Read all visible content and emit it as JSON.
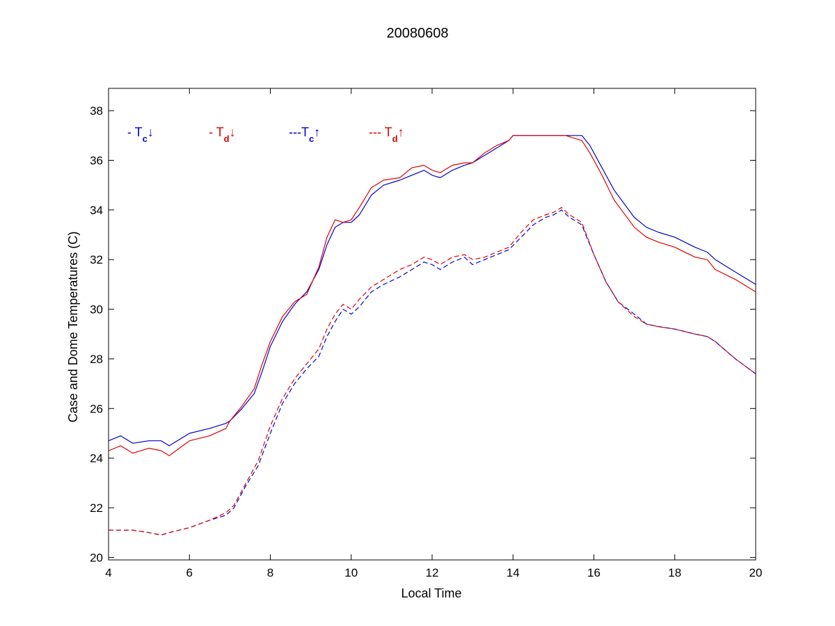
{
  "chart_data": {
    "type": "line",
    "title": "20080608",
    "xlabel": "Local Time",
    "ylabel": "Case and Dome Temperatures (C)",
    "xlim": [
      4,
      20
    ],
    "ylim": [
      19.9,
      38.9
    ],
    "xticks": [
      "4",
      "6",
      "8",
      "10",
      "12",
      "14",
      "16",
      "18",
      "20"
    ],
    "yticks": [
      "20",
      "22",
      "24",
      "26",
      "28",
      "30",
      "32",
      "34",
      "36",
      "38"
    ],
    "grid": false,
    "legend_placement": "top-left",
    "legend": [
      {
        "prefix": "- T",
        "sub": "c",
        "arrow": "↓",
        "color": "#0000cc"
      },
      {
        "prefix": "- T",
        "sub": "d",
        "arrow": "↓",
        "color": "#dd0000"
      },
      {
        "prefix": "---T",
        "sub": "c",
        "arrow": "↑",
        "color": "#0000cc"
      },
      {
        "prefix": "--- T",
        "sub": "d",
        "arrow": "↑",
        "color": "#dd0000"
      }
    ],
    "series": [
      {
        "color": "#0000cc",
        "dash": "solid",
        "x": [
          4.0,
          4.3,
          4.6,
          5.0,
          5.3,
          5.5,
          6.0,
          6.5,
          6.9,
          7.0,
          7.3,
          7.6,
          7.8,
          8.0,
          8.3,
          8.6,
          8.9,
          9.2,
          9.4,
          9.6,
          9.8,
          10.0,
          10.2,
          10.5,
          10.8,
          11.2,
          11.5,
          11.8,
          12.0,
          12.2,
          12.5,
          12.8,
          13.0,
          13.3,
          13.6,
          13.9,
          14.0,
          14.5,
          15.0,
          15.5,
          15.7,
          15.9,
          16.2,
          16.5,
          17.0,
          17.3,
          17.6,
          18.0,
          18.5,
          18.8,
          19.0,
          19.5,
          20.0
        ],
        "y": [
          24.7,
          24.9,
          24.6,
          24.7,
          24.7,
          24.5,
          25.0,
          25.2,
          25.4,
          25.5,
          26.0,
          26.6,
          27.5,
          28.5,
          29.5,
          30.2,
          30.7,
          31.6,
          32.6,
          33.3,
          33.5,
          33.5,
          33.8,
          34.6,
          35.0,
          35.2,
          35.4,
          35.6,
          35.4,
          35.3,
          35.6,
          35.8,
          35.9,
          36.2,
          36.5,
          36.8,
          37.0,
          37.0,
          37.0,
          37.0,
          37.0,
          36.6,
          35.7,
          34.8,
          33.7,
          33.3,
          33.1,
          32.9,
          32.5,
          32.3,
          32.0,
          31.5,
          31.0
        ]
      },
      {
        "color": "#dd0000",
        "dash": "solid",
        "x": [
          4.0,
          4.3,
          4.6,
          5.0,
          5.3,
          5.5,
          6.0,
          6.5,
          6.9,
          7.0,
          7.3,
          7.6,
          7.8,
          8.0,
          8.3,
          8.6,
          8.9,
          9.2,
          9.4,
          9.6,
          9.8,
          10.0,
          10.2,
          10.5,
          10.8,
          11.2,
          11.5,
          11.8,
          12.0,
          12.2,
          12.5,
          12.8,
          13.0,
          13.3,
          13.6,
          13.9,
          14.0,
          14.5,
          15.0,
          15.3,
          15.5,
          15.7,
          15.9,
          16.2,
          16.5,
          17.0,
          17.3,
          17.6,
          18.0,
          18.5,
          18.8,
          19.0,
          19.5,
          20.0
        ],
        "y": [
          24.3,
          24.5,
          24.2,
          24.4,
          24.3,
          24.1,
          24.7,
          24.9,
          25.2,
          25.5,
          26.1,
          26.8,
          27.8,
          28.7,
          29.7,
          30.3,
          30.6,
          31.7,
          32.9,
          33.6,
          33.5,
          33.6,
          34.1,
          34.9,
          35.2,
          35.3,
          35.7,
          35.8,
          35.6,
          35.5,
          35.8,
          35.9,
          35.9,
          36.3,
          36.6,
          36.8,
          37.0,
          37.0,
          37.0,
          37.0,
          36.9,
          36.8,
          36.3,
          35.4,
          34.4,
          33.3,
          32.9,
          32.7,
          32.5,
          32.1,
          32.0,
          31.6,
          31.2,
          30.7
        ]
      },
      {
        "color": "#0000cc",
        "dash": "dashed",
        "x": [
          4.0,
          4.3,
          4.6,
          5.0,
          5.3,
          5.5,
          6.0,
          6.5,
          6.9,
          7.1,
          7.4,
          7.7,
          8.0,
          8.3,
          8.6,
          8.9,
          9.2,
          9.4,
          9.6,
          9.8,
          10.0,
          10.2,
          10.5,
          10.8,
          11.2,
          11.5,
          11.8,
          12.0,
          12.2,
          12.5,
          12.8,
          13.0,
          13.3,
          13.6,
          13.9,
          14.2,
          14.5,
          14.8,
          15.0,
          15.2,
          15.4,
          15.7,
          16.0,
          16.3,
          16.6,
          17.0,
          17.3,
          17.6,
          18.0,
          18.5,
          18.8,
          19.0,
          19.5,
          20.0
        ],
        "y": [
          21.1,
          21.1,
          21.1,
          21.0,
          20.9,
          21.0,
          21.2,
          21.5,
          21.7,
          22.0,
          22.9,
          23.7,
          25.0,
          26.2,
          27.0,
          27.6,
          28.1,
          28.9,
          29.5,
          30.0,
          29.8,
          30.1,
          30.7,
          31.0,
          31.3,
          31.6,
          31.9,
          31.8,
          31.6,
          31.9,
          32.1,
          31.8,
          32.0,
          32.2,
          32.4,
          32.9,
          33.4,
          33.7,
          33.8,
          34.0,
          33.7,
          33.4,
          32.2,
          31.1,
          30.3,
          29.8,
          29.4,
          29.3,
          29.2,
          29.0,
          28.9,
          28.7,
          28.0,
          27.4
        ]
      },
      {
        "color": "#dd0000",
        "dash": "dashed",
        "x": [
          4.0,
          4.3,
          4.6,
          5.0,
          5.3,
          5.5,
          6.0,
          6.5,
          6.9,
          7.1,
          7.4,
          7.7,
          8.0,
          8.3,
          8.6,
          8.9,
          9.2,
          9.4,
          9.6,
          9.8,
          10.0,
          10.2,
          10.5,
          10.8,
          11.2,
          11.5,
          11.8,
          12.0,
          12.2,
          12.5,
          12.8,
          13.0,
          13.3,
          13.6,
          13.9,
          14.2,
          14.5,
          14.8,
          15.0,
          15.2,
          15.4,
          15.7,
          16.0,
          16.3,
          16.6,
          17.0,
          17.3,
          17.6,
          18.0,
          18.5,
          18.8,
          19.0,
          19.5,
          20.0
        ],
        "y": [
          21.1,
          21.1,
          21.1,
          21.0,
          20.9,
          21.0,
          21.2,
          21.5,
          21.8,
          22.1,
          23.0,
          23.9,
          25.3,
          26.4,
          27.2,
          27.8,
          28.4,
          29.2,
          29.8,
          30.2,
          30.0,
          30.4,
          30.9,
          31.2,
          31.6,
          31.8,
          32.1,
          32.0,
          31.8,
          32.1,
          32.2,
          32.0,
          32.1,
          32.3,
          32.5,
          33.1,
          33.6,
          33.8,
          33.9,
          34.1,
          33.8,
          33.5,
          32.2,
          31.1,
          30.3,
          29.7,
          29.4,
          29.3,
          29.2,
          29.0,
          28.9,
          28.7,
          28.0,
          27.4
        ]
      }
    ]
  }
}
